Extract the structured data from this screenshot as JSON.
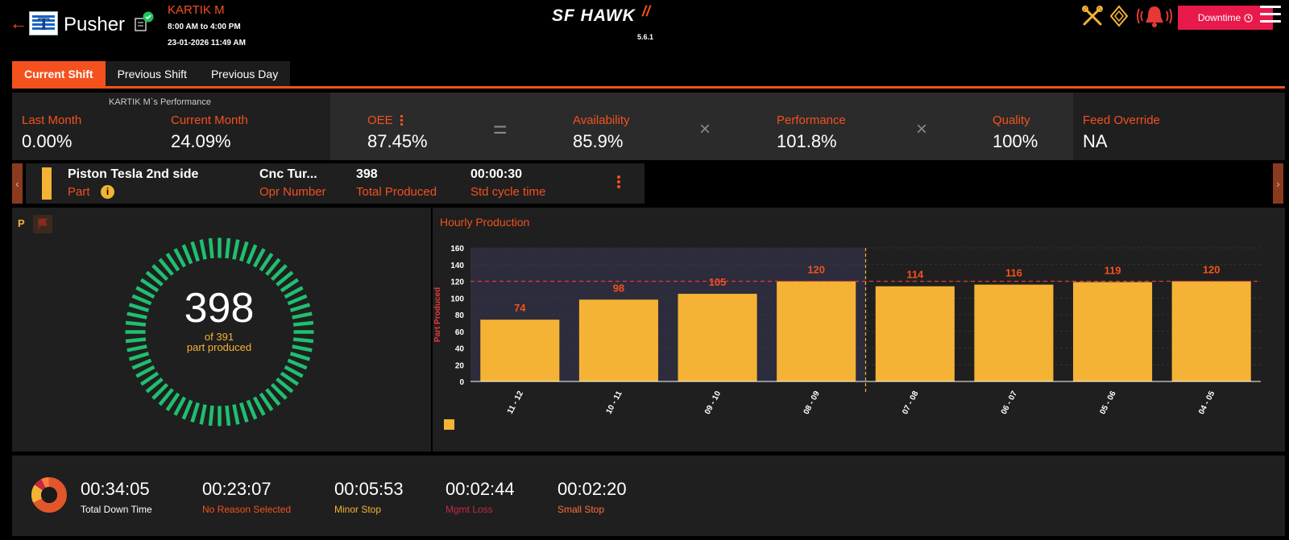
{
  "header": {
    "machine_name": "Pusher",
    "operator": "KARTIK M",
    "shift_time": "8:00 AM to 4:00 PM",
    "datetime": "23-01-2026 11:49 AM",
    "brand": "SF HAWK",
    "version": "5.6.1",
    "downtime_label": "Downtime",
    "icons": [
      "back-arrow-icon",
      "machine-logo-icon",
      "status-check-icon",
      "tools-icon",
      "diamond-icon",
      "alarm-bell-icon",
      "clock-icon",
      "menu-icon"
    ]
  },
  "tabs": [
    {
      "label": "Current Shift",
      "active": true
    },
    {
      "label": "Previous Shift",
      "active": false
    },
    {
      "label": "Previous Day",
      "active": false
    }
  ],
  "performance": {
    "title": "KARTIK M`s Performance",
    "last_month_label": "Last Month",
    "last_month_value": "0.00%",
    "current_month_label": "Current Month",
    "current_month_value": "24.09%"
  },
  "kpis": {
    "oee_label": "OEE",
    "oee_value": "87.45%",
    "availability_label": "Availability",
    "availability_value": "85.9%",
    "performance_label": "Performance",
    "performance_value": "101.8%",
    "quality_label": "Quality",
    "quality_value": "100%",
    "feed_override_label": "Feed Override",
    "feed_override_value": "NA"
  },
  "part": {
    "name": "Piston Tesla 2nd side",
    "name_label": "Part",
    "opr_value": "Cnc Tur...",
    "opr_label": "Opr Number",
    "total_value": "398",
    "total_label": "Total Produced",
    "cycle_value": "00:00:30",
    "cycle_label": "Std cycle time",
    "swatch_color": "#f5b335"
  },
  "production": {
    "p_label": "P",
    "count": "398",
    "of_text": "of 391",
    "sub_text": "part produced",
    "ring_color": "#1fbf6f",
    "progress_fraction": 1.0
  },
  "hourly_chart": {
    "title": "Hourly Production",
    "ylabel": "Part Produced"
  },
  "chart_data": {
    "type": "bar",
    "categories": [
      "11 - 12",
      "10 - 11",
      "09 - 10",
      "08 - 09",
      "07 - 08",
      "06 - 07",
      "05 - 06",
      "04 - 05"
    ],
    "values": [
      74,
      98,
      105,
      120,
      114,
      116,
      119,
      120
    ],
    "ylim": [
      0,
      160
    ],
    "yticks": [
      0,
      20,
      40,
      60,
      80,
      100,
      120,
      140,
      160
    ],
    "target": 120,
    "ylabel": "Part Produced",
    "bar_color": "#f5b335",
    "label_color": "#f4511e",
    "current_shift_highlight": [
      "11 - 12",
      "10 - 11",
      "09 - 10",
      "08 - 09"
    ],
    "grid": true
  },
  "downtime": {
    "total_value": "00:34:05",
    "total_label": "Total Down Time",
    "items": [
      {
        "value": "00:23:07",
        "label": "No Reason Selected",
        "color": "#f4511e"
      },
      {
        "value": "00:05:53",
        "label": "Minor Stop",
        "color": "#f5b335"
      },
      {
        "value": "00:02:44",
        "label": "Mgmt Loss",
        "color": "#c62843"
      },
      {
        "value": "00:02:20",
        "label": "Small Stop",
        "color": "#ff6f3c"
      }
    ]
  }
}
